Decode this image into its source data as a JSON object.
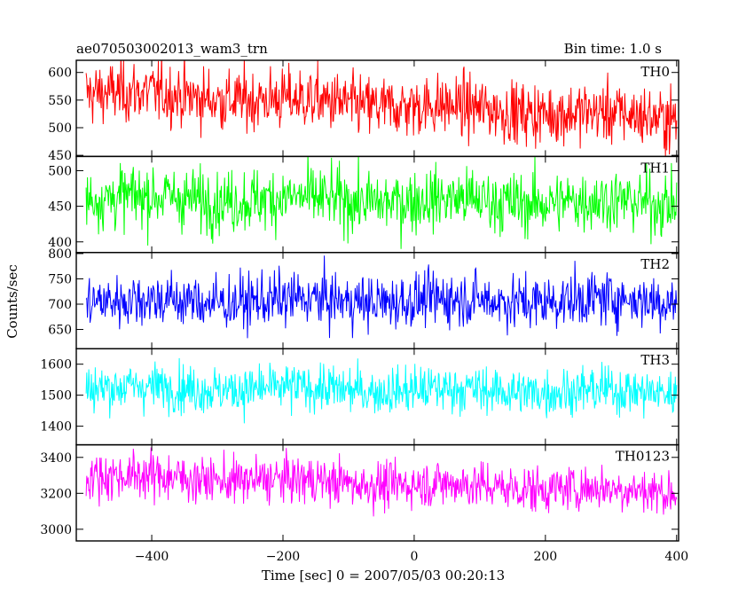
{
  "chart_data": {
    "type": "line",
    "title": "ae070503002013_wam3_trn",
    "bin_time_label": "Bin time: 1.0 s",
    "xlabel": "Time [sec] 0 = 2007/05/03 00:20:13",
    "ylabel": "Counts/sec",
    "xlim": [
      -515,
      403
    ],
    "data_x_range": [
      -500,
      400
    ],
    "x_ticks": [
      -400,
      -200,
      0,
      200,
      400
    ],
    "x_tick_labels": [
      "−400",
      "−200",
      "0",
      "200",
      "400"
    ],
    "grid": false,
    "series": [
      {
        "name": "TH0",
        "color": "#ff0000",
        "ylim": [
          448,
          622
        ],
        "y_ticks": [
          450,
          500,
          550,
          600
        ],
        "y_tick_labels": [
          "450",
          "500",
          "550",
          "600"
        ],
        "mean_start": 565,
        "mean_end": 518,
        "spread": 28
      },
      {
        "name": "TH1",
        "color": "#00ff00",
        "ylim": [
          385,
          520
        ],
        "y_ticks": [
          400,
          450,
          500
        ],
        "y_tick_labels": [
          "400",
          "450",
          "500"
        ],
        "mean_start": 462,
        "mean_end": 455,
        "spread": 22
      },
      {
        "name": "TH2",
        "color": "#0000ff",
        "ylim": [
          612,
          802
        ],
        "y_ticks": [
          650,
          700,
          750,
          800
        ],
        "y_tick_labels": [
          "650",
          "700",
          "750",
          "800"
        ],
        "mean_start": 706,
        "mean_end": 708,
        "spread": 27
      },
      {
        "name": "TH3",
        "color": "#00ffff",
        "ylim": [
          1340,
          1650
        ],
        "y_ticks": [
          1400,
          1500,
          1600
        ],
        "y_tick_labels": [
          "1400",
          "1500",
          "1600"
        ],
        "mean_start": 1525,
        "mean_end": 1510,
        "spread": 38
      },
      {
        "name": "TH0123",
        "color": "#ff00ff",
        "ylim": [
          2935,
          3470
        ],
        "y_ticks": [
          3000,
          3200,
          3400
        ],
        "y_tick_labels": [
          "3000",
          "3200",
          "3400"
        ],
        "mean_start": 3300,
        "mean_end": 3210,
        "spread": 65
      }
    ]
  }
}
